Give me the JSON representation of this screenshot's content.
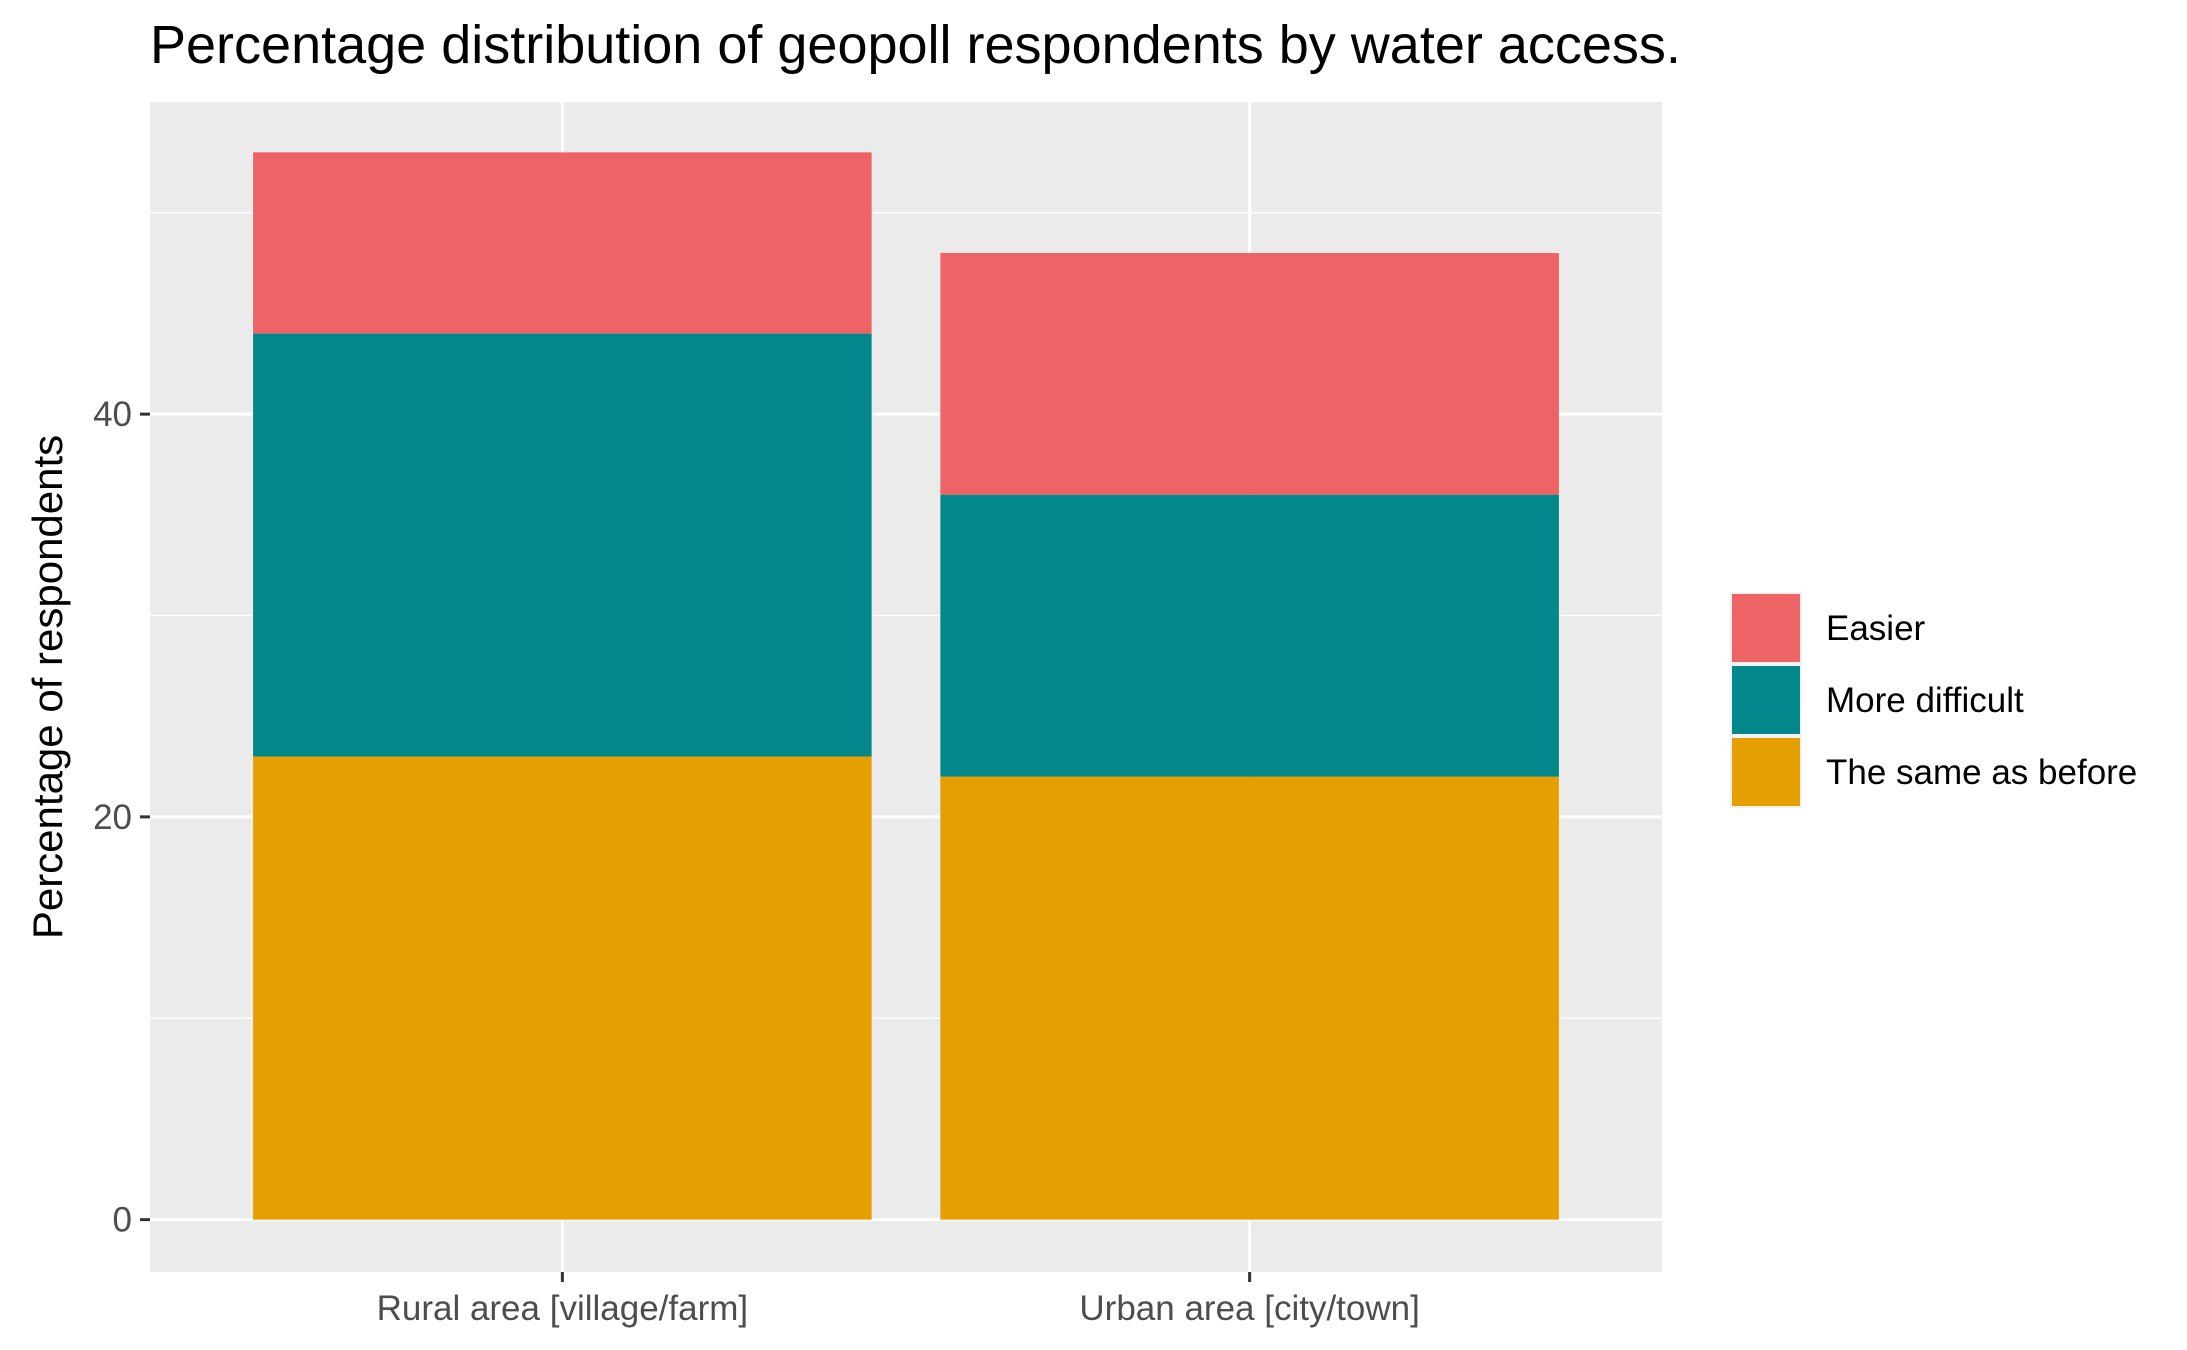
{
  "chart_data": {
    "type": "bar",
    "stacked": true,
    "title": "Percentage distribution of geopoll respondents by water access.",
    "xlabel": "",
    "ylabel": "Percentage of respondents",
    "categories": [
      "Rural area [village/farm]",
      "Urban area [city/town]"
    ],
    "series": [
      {
        "name": "The same as before",
        "values": [
          23,
          22
        ],
        "color": "#E69F00"
      },
      {
        "name": "More difficult",
        "values": [
          21,
          14
        ],
        "color": "#02878A"
      },
      {
        "name": "Easier",
        "values": [
          9,
          12
        ],
        "color": "#EE6466"
      }
    ],
    "legend_order": [
      "Easier",
      "More difficult",
      "The same as before"
    ],
    "ylim": [
      -2.6,
      55.5
    ],
    "yticks": [
      0,
      20,
      40
    ],
    "ytick_labels": [
      "0",
      "20",
      "40"
    ],
    "grid": true,
    "panel_background": "#EBEBEB",
    "legend_position": "right"
  }
}
